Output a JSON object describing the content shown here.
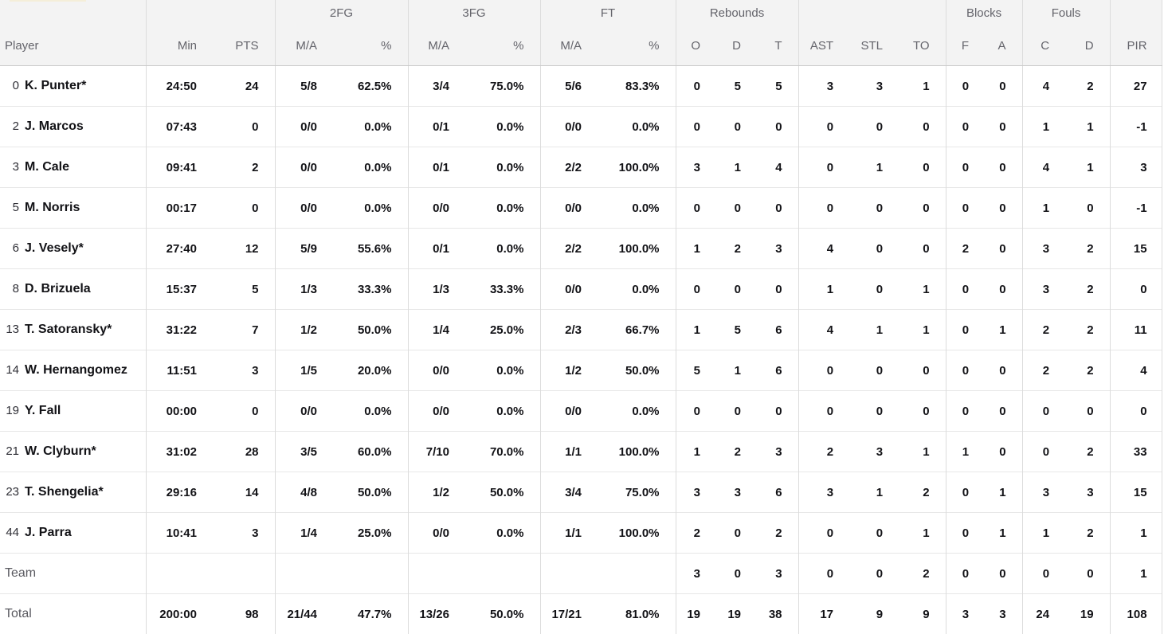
{
  "colors": {
    "header_bg": "#f3f3f3",
    "header_text": "#64646b",
    "value_text": "#121216",
    "muted_label_text": "#5a5a60",
    "row_border": "#e7e7e7",
    "group_border": "#dcdcdc",
    "header_bottom_border": "#c9c9c9",
    "accent_strip": "#f4eed9"
  },
  "table": {
    "groups": [
      {
        "label": ""
      },
      {
        "label": ""
      },
      {
        "label": "2FG"
      },
      {
        "label": "3FG"
      },
      {
        "label": "FT"
      },
      {
        "label": "Rebounds"
      },
      {
        "label": ""
      },
      {
        "label": "Blocks"
      },
      {
        "label": "Fouls"
      },
      {
        "label": ""
      }
    ],
    "columns": [
      "Player",
      "Min",
      "PTS",
      "M/A",
      "%",
      "M/A",
      "%",
      "M/A",
      "%",
      "O",
      "D",
      "T",
      "AST",
      "STL",
      "TO",
      "F",
      "A",
      "C",
      "D",
      "PIR"
    ],
    "rows": [
      {
        "num": "0",
        "name": "K. Punter*",
        "min": "24:50",
        "pts": "24",
        "fg2_ma": "5/8",
        "fg2_pct": "62.5%",
        "fg3_ma": "3/4",
        "fg3_pct": "75.0%",
        "ft_ma": "5/6",
        "ft_pct": "83.3%",
        "reb_o": "0",
        "reb_d": "5",
        "reb_t": "5",
        "ast": "3",
        "stl": "3",
        "to": "1",
        "blk_f": "0",
        "blk_a": "0",
        "foul_c": "4",
        "foul_d": "2",
        "pir": "27"
      },
      {
        "num": "2",
        "name": "J. Marcos",
        "min": "07:43",
        "pts": "0",
        "fg2_ma": "0/0",
        "fg2_pct": "0.0%",
        "fg3_ma": "0/1",
        "fg3_pct": "0.0%",
        "ft_ma": "0/0",
        "ft_pct": "0.0%",
        "reb_o": "0",
        "reb_d": "0",
        "reb_t": "0",
        "ast": "0",
        "stl": "0",
        "to": "0",
        "blk_f": "0",
        "blk_a": "0",
        "foul_c": "1",
        "foul_d": "1",
        "pir": "-1"
      },
      {
        "num": "3",
        "name": "M. Cale",
        "min": "09:41",
        "pts": "2",
        "fg2_ma": "0/0",
        "fg2_pct": "0.0%",
        "fg3_ma": "0/1",
        "fg3_pct": "0.0%",
        "ft_ma": "2/2",
        "ft_pct": "100.0%",
        "reb_o": "3",
        "reb_d": "1",
        "reb_t": "4",
        "ast": "0",
        "stl": "1",
        "to": "0",
        "blk_f": "0",
        "blk_a": "0",
        "foul_c": "4",
        "foul_d": "1",
        "pir": "3"
      },
      {
        "num": "5",
        "name": "M. Norris",
        "min": "00:17",
        "pts": "0",
        "fg2_ma": "0/0",
        "fg2_pct": "0.0%",
        "fg3_ma": "0/0",
        "fg3_pct": "0.0%",
        "ft_ma": "0/0",
        "ft_pct": "0.0%",
        "reb_o": "0",
        "reb_d": "0",
        "reb_t": "0",
        "ast": "0",
        "stl": "0",
        "to": "0",
        "blk_f": "0",
        "blk_a": "0",
        "foul_c": "1",
        "foul_d": "0",
        "pir": "-1"
      },
      {
        "num": "6",
        "name": "J. Vesely*",
        "min": "27:40",
        "pts": "12",
        "fg2_ma": "5/9",
        "fg2_pct": "55.6%",
        "fg3_ma": "0/1",
        "fg3_pct": "0.0%",
        "ft_ma": "2/2",
        "ft_pct": "100.0%",
        "reb_o": "1",
        "reb_d": "2",
        "reb_t": "3",
        "ast": "4",
        "stl": "0",
        "to": "0",
        "blk_f": "2",
        "blk_a": "0",
        "foul_c": "3",
        "foul_d": "2",
        "pir": "15"
      },
      {
        "num": "8",
        "name": "D. Brizuela",
        "min": "15:37",
        "pts": "5",
        "fg2_ma": "1/3",
        "fg2_pct": "33.3%",
        "fg3_ma": "1/3",
        "fg3_pct": "33.3%",
        "ft_ma": "0/0",
        "ft_pct": "0.0%",
        "reb_o": "0",
        "reb_d": "0",
        "reb_t": "0",
        "ast": "1",
        "stl": "0",
        "to": "1",
        "blk_f": "0",
        "blk_a": "0",
        "foul_c": "3",
        "foul_d": "2",
        "pir": "0"
      },
      {
        "num": "13",
        "name": "T. Satoransky*",
        "min": "31:22",
        "pts": "7",
        "fg2_ma": "1/2",
        "fg2_pct": "50.0%",
        "fg3_ma": "1/4",
        "fg3_pct": "25.0%",
        "ft_ma": "2/3",
        "ft_pct": "66.7%",
        "reb_o": "1",
        "reb_d": "5",
        "reb_t": "6",
        "ast": "4",
        "stl": "1",
        "to": "1",
        "blk_f": "0",
        "blk_a": "1",
        "foul_c": "2",
        "foul_d": "2",
        "pir": "11"
      },
      {
        "num": "14",
        "name": "W. Hernangomez",
        "min": "11:51",
        "pts": "3",
        "fg2_ma": "1/5",
        "fg2_pct": "20.0%",
        "fg3_ma": "0/0",
        "fg3_pct": "0.0%",
        "ft_ma": "1/2",
        "ft_pct": "50.0%",
        "reb_o": "5",
        "reb_d": "1",
        "reb_t": "6",
        "ast": "0",
        "stl": "0",
        "to": "0",
        "blk_f": "0",
        "blk_a": "0",
        "foul_c": "2",
        "foul_d": "2",
        "pir": "4"
      },
      {
        "num": "19",
        "name": "Y. Fall",
        "min": "00:00",
        "pts": "0",
        "fg2_ma": "0/0",
        "fg2_pct": "0.0%",
        "fg3_ma": "0/0",
        "fg3_pct": "0.0%",
        "ft_ma": "0/0",
        "ft_pct": "0.0%",
        "reb_o": "0",
        "reb_d": "0",
        "reb_t": "0",
        "ast": "0",
        "stl": "0",
        "to": "0",
        "blk_f": "0",
        "blk_a": "0",
        "foul_c": "0",
        "foul_d": "0",
        "pir": "0"
      },
      {
        "num": "21",
        "name": "W. Clyburn*",
        "min": "31:02",
        "pts": "28",
        "fg2_ma": "3/5",
        "fg2_pct": "60.0%",
        "fg3_ma": "7/10",
        "fg3_pct": "70.0%",
        "ft_ma": "1/1",
        "ft_pct": "100.0%",
        "reb_o": "1",
        "reb_d": "2",
        "reb_t": "3",
        "ast": "2",
        "stl": "3",
        "to": "1",
        "blk_f": "1",
        "blk_a": "0",
        "foul_c": "0",
        "foul_d": "2",
        "pir": "33"
      },
      {
        "num": "23",
        "name": "T. Shengelia*",
        "min": "29:16",
        "pts": "14",
        "fg2_ma": "4/8",
        "fg2_pct": "50.0%",
        "fg3_ma": "1/2",
        "fg3_pct": "50.0%",
        "ft_ma": "3/4",
        "ft_pct": "75.0%",
        "reb_o": "3",
        "reb_d": "3",
        "reb_t": "6",
        "ast": "3",
        "stl": "1",
        "to": "2",
        "blk_f": "0",
        "blk_a": "1",
        "foul_c": "3",
        "foul_d": "3",
        "pir": "15"
      },
      {
        "num": "44",
        "name": "J. Parra",
        "min": "10:41",
        "pts": "3",
        "fg2_ma": "1/4",
        "fg2_pct": "25.0%",
        "fg3_ma": "0/0",
        "fg3_pct": "0.0%",
        "ft_ma": "1/1",
        "ft_pct": "100.0%",
        "reb_o": "2",
        "reb_d": "0",
        "reb_t": "2",
        "ast": "0",
        "stl": "0",
        "to": "1",
        "blk_f": "0",
        "blk_a": "1",
        "foul_c": "1",
        "foul_d": "2",
        "pir": "1"
      }
    ],
    "summary_rows": [
      {
        "label": "Team",
        "min": "",
        "pts": "",
        "fg2_ma": "",
        "fg2_pct": "",
        "fg3_ma": "",
        "fg3_pct": "",
        "ft_ma": "",
        "ft_pct": "",
        "reb_o": "3",
        "reb_d": "0",
        "reb_t": "3",
        "ast": "0",
        "stl": "0",
        "to": "2",
        "blk_f": "0",
        "blk_a": "0",
        "foul_c": "0",
        "foul_d": "0",
        "pir": "1"
      },
      {
        "label": "Total",
        "min": "200:00",
        "pts": "98",
        "fg2_ma": "21/44",
        "fg2_pct": "47.7%",
        "fg3_ma": "13/26",
        "fg3_pct": "50.0%",
        "ft_ma": "17/21",
        "ft_pct": "81.0%",
        "reb_o": "19",
        "reb_d": "19",
        "reb_t": "38",
        "ast": "17",
        "stl": "9",
        "to": "9",
        "blk_f": "3",
        "blk_a": "3",
        "foul_c": "24",
        "foul_d": "19",
        "pir": "108"
      }
    ]
  }
}
